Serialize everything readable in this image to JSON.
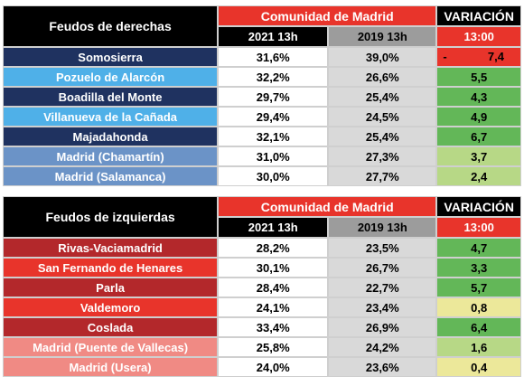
{
  "colors": {
    "red": "#e8342b",
    "navy": "#1f3260",
    "sky": "#4fb0e8",
    "steel": "#6b93c7",
    "dark_red": "#b3282b",
    "salmon": "#f08a84",
    "green_strong": "#63b758",
    "green_light": "#b7d886",
    "yellow": "#ece89a"
  },
  "header": {
    "cm_label": "Comunidad de Madrid",
    "var_label": "VARIACIÓN",
    "col_2021": "2021 13h",
    "col_2019": "2019 13h",
    "col_var": "13:00"
  },
  "tables": [
    {
      "title": "Feudos de derechas",
      "rows": [
        {
          "name": "Somosierra",
          "v2021": "31,6%",
          "v2019": "39,0%",
          "var_sign": "-",
          "var": "7,4",
          "name_color": "#1f3260",
          "var_color": "#e8342b"
        },
        {
          "name": "Pozuelo de Alarcón",
          "v2021": "32,2%",
          "v2019": "26,6%",
          "var_sign": "",
          "var": "5,5",
          "name_color": "#4fb0e8",
          "var_color": "#63b758"
        },
        {
          "name": "Boadilla del Monte",
          "v2021": "29,7%",
          "v2019": "25,4%",
          "var_sign": "",
          "var": "4,3",
          "name_color": "#1f3260",
          "var_color": "#63b758"
        },
        {
          "name": "Villanueva de la Cañada",
          "v2021": "29,4%",
          "v2019": "24,5%",
          "var_sign": "",
          "var": "4,9",
          "name_color": "#4fb0e8",
          "var_color": "#63b758"
        },
        {
          "name": "Majadahonda",
          "v2021": "32,1%",
          "v2019": "25,4%",
          "var_sign": "",
          "var": "6,7",
          "name_color": "#1f3260",
          "var_color": "#63b758"
        },
        {
          "name": "Madrid (Chamartín)",
          "v2021": "31,0%",
          "v2019": "27,3%",
          "var_sign": "",
          "var": "3,7",
          "name_color": "#6b93c7",
          "var_color": "#b7d886"
        },
        {
          "name": "Madrid (Salamanca)",
          "v2021": "30,0%",
          "v2019": "27,7%",
          "var_sign": "",
          "var": "2,4",
          "name_color": "#6b93c7",
          "var_color": "#b7d886"
        }
      ]
    },
    {
      "title": "Feudos de izquierdas",
      "rows": [
        {
          "name": "Rivas-Vaciamadrid",
          "v2021": "28,2%",
          "v2019": "23,5%",
          "var_sign": "",
          "var": "4,7",
          "name_color": "#b3282b",
          "var_color": "#63b758"
        },
        {
          "name": "San Fernando de Henares",
          "v2021": "30,1%",
          "v2019": "26,7%",
          "var_sign": "",
          "var": "3,3",
          "name_color": "#e8342b",
          "var_color": "#63b758"
        },
        {
          "name": "Parla",
          "v2021": "28,4%",
          "v2019": "22,7%",
          "var_sign": "",
          "var": "5,7",
          "name_color": "#b3282b",
          "var_color": "#63b758"
        },
        {
          "name": "Valdemoro",
          "v2021": "24,1%",
          "v2019": "23,4%",
          "var_sign": "",
          "var": "0,8",
          "name_color": "#e8342b",
          "var_color": "#ece89a"
        },
        {
          "name": "Coslada",
          "v2021": "33,4%",
          "v2019": "26,9%",
          "var_sign": "",
          "var": "6,4",
          "name_color": "#b3282b",
          "var_color": "#63b758"
        },
        {
          "name": "Madrid (Puente de Vallecas)",
          "v2021": "25,8%",
          "v2019": "24,2%",
          "var_sign": "",
          "var": "1,6",
          "name_color": "#f08a84",
          "var_color": "#b7d886"
        },
        {
          "name": "Madrid (Usera)",
          "v2021": "24,0%",
          "v2019": "23,6%",
          "var_sign": "",
          "var": "0,4",
          "name_color": "#f08a84",
          "var_color": "#ece89a"
        }
      ]
    }
  ]
}
